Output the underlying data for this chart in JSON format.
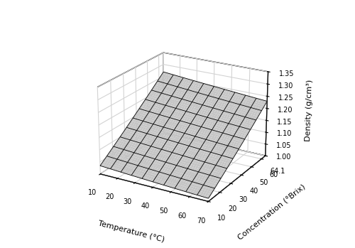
{
  "temp_range": [
    10,
    70
  ],
  "conc_range": [
    10,
    64.1
  ],
  "temp_ticks": [
    10,
    20,
    30,
    40,
    50,
    60,
    70
  ],
  "conc_ticks": [
    10,
    20,
    30,
    40,
    50,
    60,
    64.1
  ],
  "z_ticks": [
    1.0,
    1.05,
    1.1,
    1.15,
    1.2,
    1.25,
    1.3,
    1.35
  ],
  "zlim": [
    1.0,
    1.35
  ],
  "xlabel": "Temperature (°C)",
  "ylabel": "Concentration (°Brix)",
  "zlabel": "Density (g/cm³)",
  "facecolor": "white",
  "surface_color": "white",
  "grid_color": "black",
  "n_fine": 50,
  "n_wire": 11,
  "elev": 22,
  "azim": -60,
  "a0": 0.99823,
  "a1": -0.0004,
  "a2": 0.004,
  "a3": 1e-06,
  "a4": 5e-06,
  "a5": -5e-06
}
